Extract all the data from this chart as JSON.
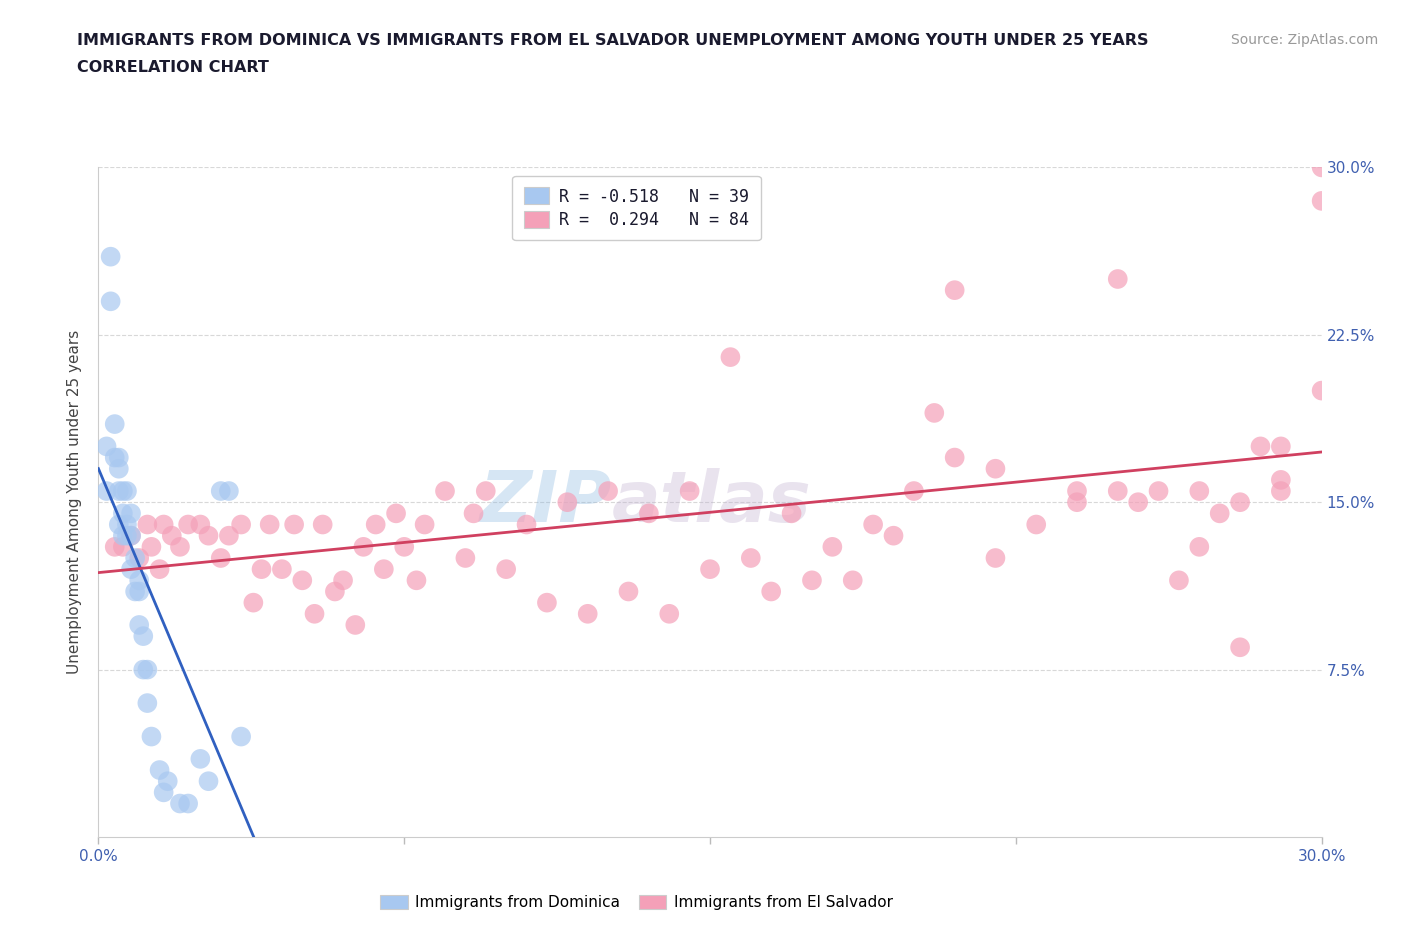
{
  "title_line1": "IMMIGRANTS FROM DOMINICA VS IMMIGRANTS FROM EL SALVADOR UNEMPLOYMENT AMONG YOUTH UNDER 25 YEARS",
  "title_line2": "CORRELATION CHART",
  "source_text": "Source: ZipAtlas.com",
  "ylabel": "Unemployment Among Youth under 25 years",
  "xlim": [
    0.0,
    0.3
  ],
  "ylim": [
    0.0,
    0.3
  ],
  "xticks": [
    0.0,
    0.075,
    0.15,
    0.225,
    0.3
  ],
  "yticks": [
    0.075,
    0.15,
    0.225,
    0.3
  ],
  "dominica_color": "#a8c8f0",
  "el_salvador_color": "#f4a0b8",
  "dominica_line_color": "#3060c0",
  "el_salvador_line_color": "#d04060",
  "watermark_color": "#c0d8f0",
  "tick_color": "#4060b0",
  "grid_color": "#d8d8d8",
  "dominica_x": [
    0.002,
    0.002,
    0.003,
    0.003,
    0.004,
    0.004,
    0.005,
    0.005,
    0.005,
    0.005,
    0.006,
    0.006,
    0.006,
    0.007,
    0.007,
    0.007,
    0.008,
    0.008,
    0.008,
    0.009,
    0.009,
    0.01,
    0.01,
    0.01,
    0.011,
    0.011,
    0.012,
    0.012,
    0.013,
    0.015,
    0.016,
    0.017,
    0.02,
    0.022,
    0.025,
    0.027,
    0.03,
    0.032,
    0.035
  ],
  "dominica_y": [
    0.155,
    0.175,
    0.24,
    0.26,
    0.17,
    0.185,
    0.14,
    0.155,
    0.165,
    0.17,
    0.135,
    0.145,
    0.155,
    0.135,
    0.14,
    0.155,
    0.12,
    0.135,
    0.145,
    0.11,
    0.125,
    0.095,
    0.11,
    0.115,
    0.075,
    0.09,
    0.06,
    0.075,
    0.045,
    0.03,
    0.02,
    0.025,
    0.015,
    0.015,
    0.035,
    0.025,
    0.155,
    0.155,
    0.045
  ],
  "salvador_x": [
    0.004,
    0.006,
    0.008,
    0.01,
    0.012,
    0.013,
    0.015,
    0.016,
    0.018,
    0.02,
    0.022,
    0.025,
    0.027,
    0.03,
    0.032,
    0.035,
    0.038,
    0.04,
    0.042,
    0.045,
    0.048,
    0.05,
    0.053,
    0.055,
    0.058,
    0.06,
    0.063,
    0.065,
    0.068,
    0.07,
    0.073,
    0.075,
    0.078,
    0.08,
    0.085,
    0.09,
    0.092,
    0.095,
    0.1,
    0.105,
    0.11,
    0.115,
    0.12,
    0.125,
    0.13,
    0.135,
    0.14,
    0.145,
    0.15,
    0.155,
    0.16,
    0.165,
    0.17,
    0.175,
    0.18,
    0.185,
    0.19,
    0.195,
    0.2,
    0.205,
    0.21,
    0.22,
    0.23,
    0.24,
    0.25,
    0.255,
    0.26,
    0.265,
    0.27,
    0.275,
    0.28,
    0.285,
    0.29,
    0.21,
    0.22,
    0.24,
    0.25,
    0.27,
    0.28,
    0.29,
    0.29,
    0.3,
    0.3,
    0.3
  ],
  "salvador_y": [
    0.13,
    0.13,
    0.135,
    0.125,
    0.14,
    0.13,
    0.12,
    0.14,
    0.135,
    0.13,
    0.14,
    0.14,
    0.135,
    0.125,
    0.135,
    0.14,
    0.105,
    0.12,
    0.14,
    0.12,
    0.14,
    0.115,
    0.1,
    0.14,
    0.11,
    0.115,
    0.095,
    0.13,
    0.14,
    0.12,
    0.145,
    0.13,
    0.115,
    0.14,
    0.155,
    0.125,
    0.145,
    0.155,
    0.12,
    0.14,
    0.105,
    0.15,
    0.1,
    0.155,
    0.11,
    0.145,
    0.1,
    0.155,
    0.12,
    0.215,
    0.125,
    0.11,
    0.145,
    0.115,
    0.13,
    0.115,
    0.14,
    0.135,
    0.155,
    0.19,
    0.17,
    0.125,
    0.14,
    0.15,
    0.155,
    0.15,
    0.155,
    0.115,
    0.13,
    0.145,
    0.085,
    0.175,
    0.155,
    0.245,
    0.165,
    0.155,
    0.25,
    0.155,
    0.15,
    0.16,
    0.175,
    0.3,
    0.285,
    0.2
  ]
}
